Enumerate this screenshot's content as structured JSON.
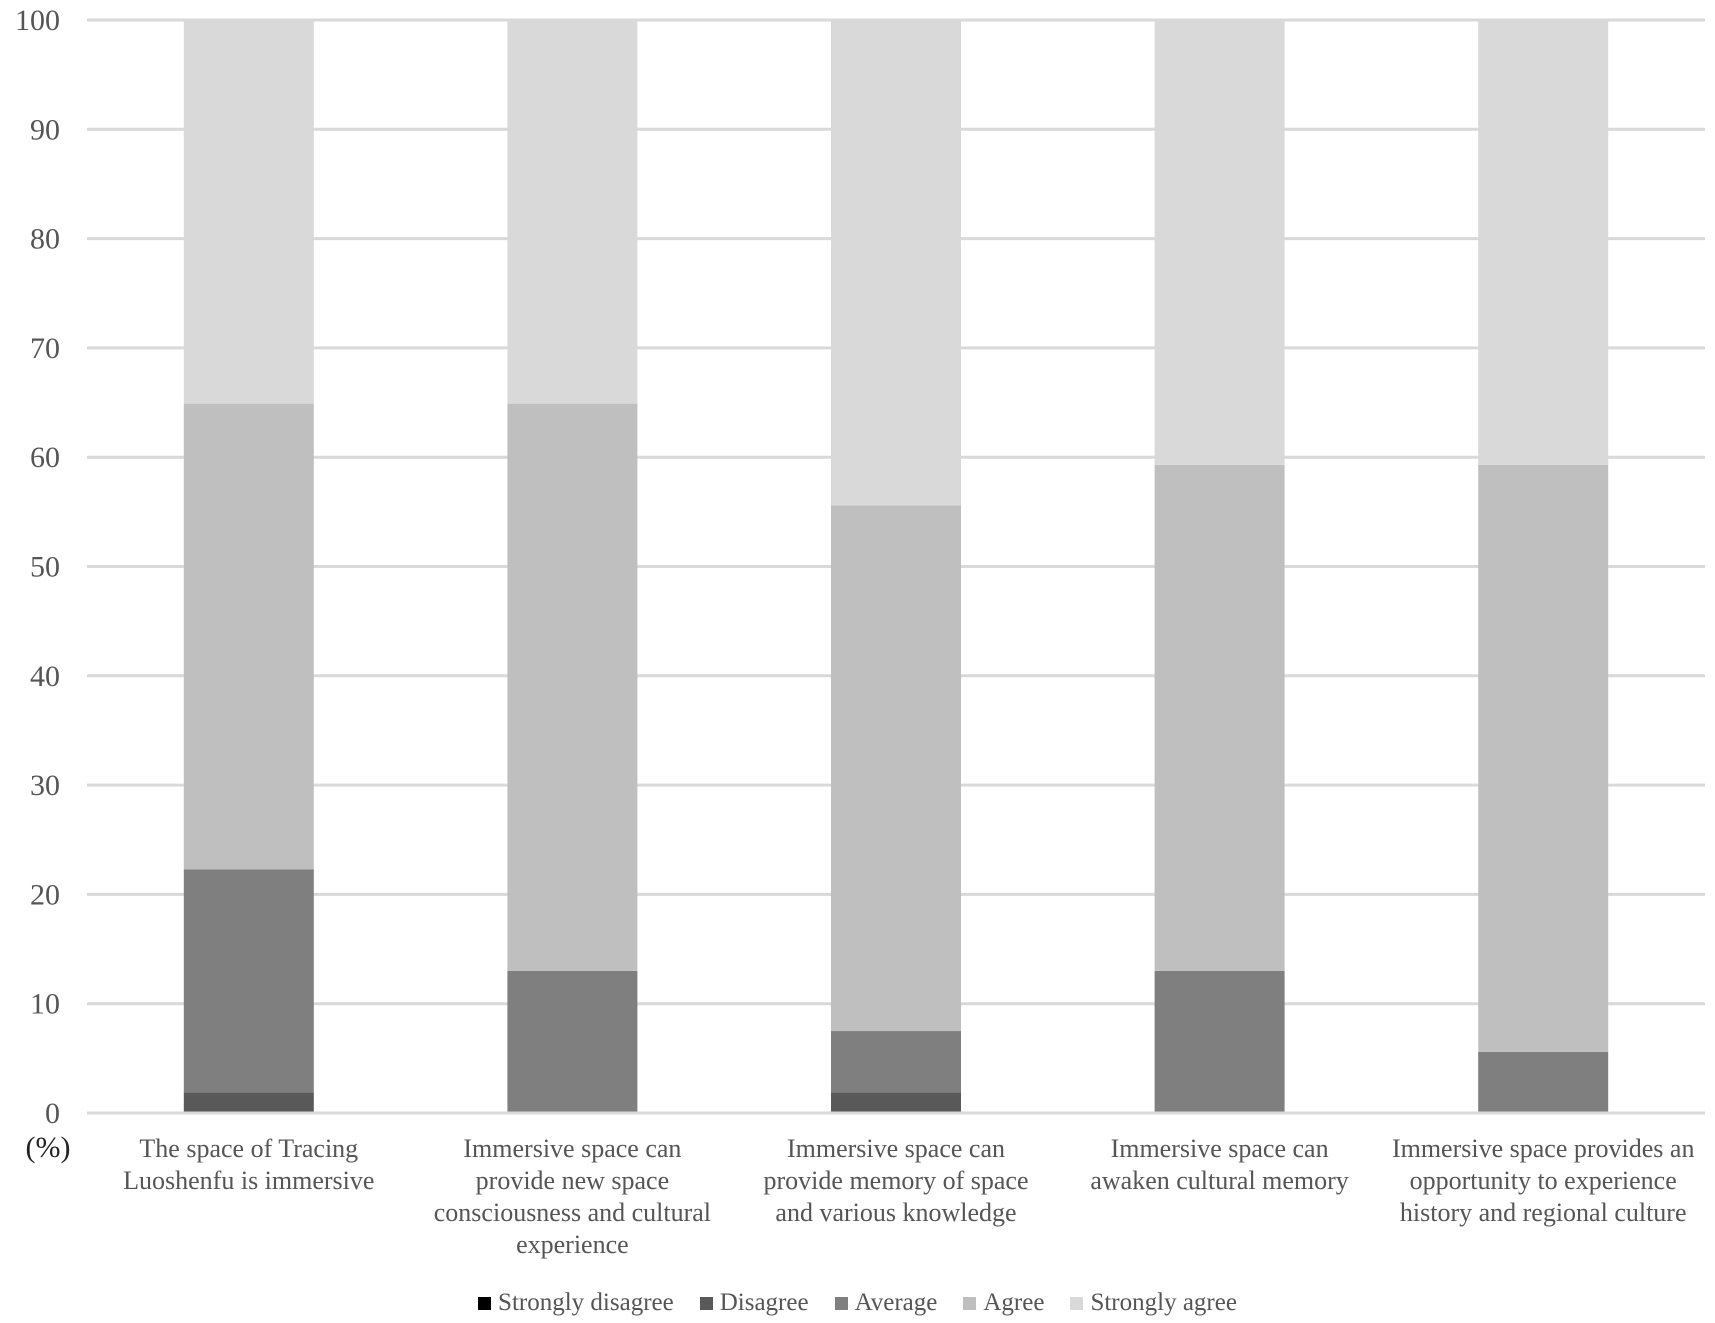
{
  "chart_data": {
    "type": "bar",
    "stacked": true,
    "y_unit": "(%)",
    "ylim": [
      0,
      100
    ],
    "yticks": [
      0,
      10,
      20,
      30,
      40,
      50,
      60,
      70,
      80,
      90,
      100
    ],
    "grid": true,
    "legend_position": "bottom",
    "categories": [
      [
        "The space of Tracing",
        "Luoshenfu is immersive"
      ],
      [
        "Immersive space can",
        "provide new space",
        "consciousness and cultural",
        "experience"
      ],
      [
        "Immersive space can",
        "provide memory of space",
        "and various knowledge"
      ],
      [
        "Immersive space can",
        "awaken cultural memory"
      ],
      [
        "Immersive space provides an",
        "opportunity to experience",
        "history and regional culture"
      ]
    ],
    "series": [
      {
        "name": "Strongly disagree",
        "color": "#000000",
        "values": [
          0,
          0,
          0,
          0,
          0
        ]
      },
      {
        "name": "Disagree",
        "color": "#595959",
        "values": [
          1.9,
          0,
          1.9,
          0,
          0
        ]
      },
      {
        "name": "Average",
        "color": "#7f7f7f",
        "values": [
          20.4,
          13.0,
          5.6,
          13.0,
          5.6
        ]
      },
      {
        "name": "Agree",
        "color": "#bfbfbf",
        "values": [
          42.6,
          51.9,
          48.1,
          46.3,
          53.7
        ]
      },
      {
        "name": "Strongly agree",
        "color": "#d9d9d9",
        "values": [
          35.1,
          35.1,
          44.4,
          40.7,
          40.7
        ]
      }
    ]
  }
}
